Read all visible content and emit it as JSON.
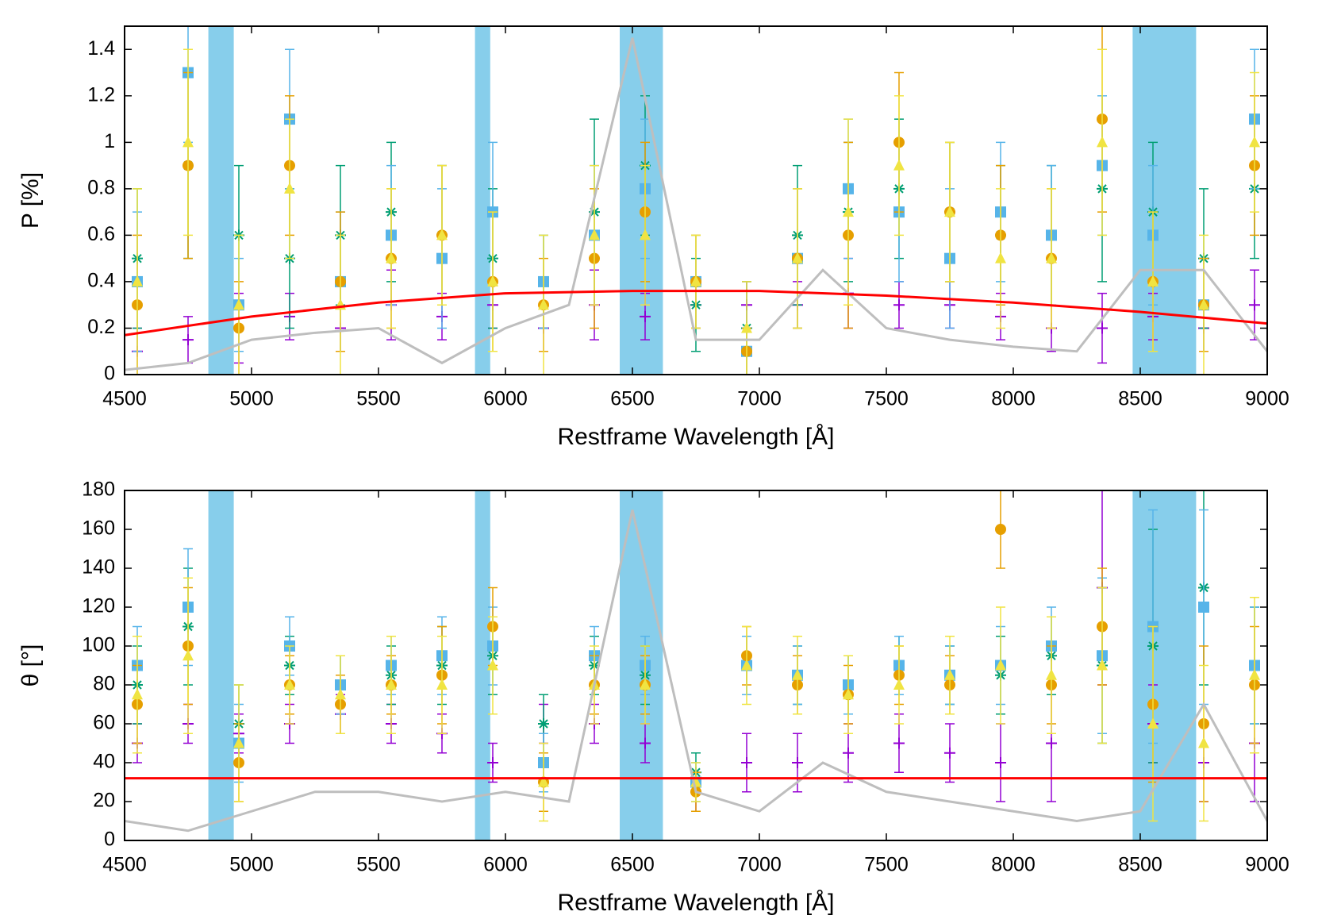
{
  "chart_data": [
    {
      "type": "scatter",
      "xlabel": "Restframe Wavelength [Å]",
      "ylabel": "P [%]",
      "xlim": [
        4500,
        9000
      ],
      "xticks": [
        4500,
        5000,
        5500,
        6000,
        6500,
        7000,
        7500,
        8000,
        8500,
        9000
      ],
      "ylim": [
        0,
        1.5
      ],
      "yticks": [
        0,
        0.2,
        0.4,
        0.6,
        0.8,
        1,
        1.2,
        1.4
      ],
      "bands": {
        "color": "#87ceeb",
        "ranges": [
          [
            4830,
            4930
          ],
          [
            5880,
            5940
          ],
          [
            6450,
            6620
          ],
          [
            8470,
            8720
          ]
        ]
      },
      "x": [
        4550,
        4750,
        4950,
        5150,
        5350,
        5550,
        5750,
        5950,
        6150,
        6350,
        6550,
        6750,
        6950,
        7150,
        7350,
        7550,
        7750,
        7950,
        8150,
        8350,
        8550,
        8750,
        8950
      ],
      "series": [
        {
          "color": "#9400d3",
          "marker": "plus",
          "values": [
            0.1,
            0.15,
            0.2,
            0.25,
            0.2,
            0.3,
            0.25,
            0.3,
            0.2,
            0.3,
            0.25,
            0.3,
            0.3,
            0.3,
            0.35,
            0.3,
            0.3,
            0.25,
            0.2,
            0.2,
            0.25,
            0.2,
            0.3
          ],
          "errors": [
            0.1,
            0.1,
            0.15,
            0.1,
            0.1,
            0.15,
            0.1,
            0.1,
            0.1,
            0.15,
            0.1,
            0.1,
            0.1,
            0.1,
            0.15,
            0.1,
            0.1,
            0.1,
            0.1,
            0.15,
            0.1,
            0.1,
            0.15
          ]
        },
        {
          "color": "#009e73",
          "marker": "star",
          "values": [
            0.5,
            0.9,
            0.6,
            0.5,
            0.6,
            0.7,
            0.6,
            0.5,
            0.4,
            0.7,
            0.9,
            0.3,
            0.2,
            0.6,
            0.7,
            0.8,
            0.7,
            0.6,
            0.6,
            0.8,
            0.7,
            0.5,
            0.8
          ],
          "errors": [
            0.3,
            0.4,
            0.3,
            0.3,
            0.3,
            0.3,
            0.3,
            0.3,
            0.2,
            0.4,
            0.3,
            0.2,
            0.2,
            0.3,
            0.3,
            0.3,
            0.3,
            0.3,
            0.3,
            0.4,
            0.3,
            0.3,
            0.3
          ]
        },
        {
          "color": "#56b4e9",
          "marker": "square",
          "values": [
            0.4,
            1.3,
            0.3,
            1.1,
            0.4,
            0.6,
            0.5,
            0.7,
            0.4,
            0.6,
            0.8,
            0.4,
            0.1,
            0.5,
            0.8,
            0.7,
            0.5,
            0.7,
            0.6,
            0.9,
            0.6,
            0.3,
            1.1
          ],
          "errors": [
            0.3,
            0.3,
            0.2,
            0.3,
            0.3,
            0.3,
            0.3,
            0.3,
            0.2,
            0.3,
            0.3,
            0.2,
            0.1,
            0.3,
            0.3,
            0.3,
            0.3,
            0.3,
            0.3,
            0.3,
            0.3,
            0.2,
            0.3
          ]
        },
        {
          "color": "#e69f00",
          "marker": "circle",
          "values": [
            0.3,
            0.9,
            0.2,
            0.9,
            0.4,
            0.5,
            0.6,
            0.4,
            0.3,
            0.5,
            0.7,
            0.4,
            0.1,
            0.5,
            0.6,
            1.0,
            0.7,
            0.6,
            0.5,
            1.1,
            0.4,
            0.3,
            0.9
          ],
          "errors": [
            0.3,
            0.4,
            0.2,
            0.3,
            0.3,
            0.3,
            0.3,
            0.3,
            0.2,
            0.3,
            0.3,
            0.2,
            0.1,
            0.3,
            0.4,
            0.3,
            0.3,
            0.3,
            0.3,
            0.4,
            0.3,
            0.2,
            0.3
          ]
        },
        {
          "color": "#f0e442",
          "marker": "triangle",
          "values": [
            0.4,
            1.0,
            0.3,
            0.8,
            0.3,
            0.5,
            0.6,
            0.4,
            0.3,
            0.6,
            0.6,
            0.4,
            0.2,
            0.5,
            0.7,
            0.9,
            0.7,
            0.5,
            0.5,
            1.0,
            0.4,
            0.3,
            1.0
          ],
          "errors": [
            0.4,
            0.4,
            0.3,
            0.3,
            0.3,
            0.3,
            0.3,
            0.3,
            0.3,
            0.3,
            0.3,
            0.2,
            0.2,
            0.3,
            0.4,
            0.3,
            0.3,
            0.3,
            0.3,
            0.4,
            0.3,
            0.3,
            0.3
          ]
        }
      ],
      "lines": [
        {
          "color": "#bebebe",
          "x": [
            4500,
            4750,
            5000,
            5250,
            5500,
            5750,
            6000,
            6250,
            6500,
            6750,
            7000,
            7250,
            7500,
            7750,
            8000,
            8250,
            8500,
            8750,
            9000
          ],
          "values": [
            0.02,
            0.05,
            0.15,
            0.18,
            0.2,
            0.05,
            0.2,
            0.3,
            1.45,
            0.15,
            0.15,
            0.45,
            0.2,
            0.15,
            0.12,
            0.1,
            0.45,
            0.45,
            0.1
          ]
        },
        {
          "color": "#ff0000",
          "x": [
            4500,
            5000,
            5500,
            6000,
            6500,
            7000,
            7500,
            8000,
            8500,
            9000
          ],
          "values": [
            0.17,
            0.25,
            0.31,
            0.35,
            0.36,
            0.36,
            0.34,
            0.31,
            0.27,
            0.22
          ]
        }
      ]
    },
    {
      "type": "scatter",
      "xlabel": "Restframe Wavelength [Å]",
      "ylabel": "θ [°]",
      "xlim": [
        4500,
        9000
      ],
      "xticks": [
        4500,
        5000,
        5500,
        6000,
        6500,
        7000,
        7500,
        8000,
        8500,
        9000
      ],
      "ylim": [
        0,
        180
      ],
      "yticks": [
        0,
        20,
        40,
        60,
        80,
        100,
        120,
        140,
        160,
        180
      ],
      "bands": {
        "color": "#87ceeb",
        "ranges": [
          [
            4830,
            4930
          ],
          [
            5880,
            5940
          ],
          [
            6450,
            6620
          ],
          [
            8470,
            8720
          ]
        ]
      },
      "x": [
        4550,
        4750,
        4950,
        5150,
        5350,
        5550,
        5750,
        5950,
        6150,
        6350,
        6550,
        6750,
        6950,
        7150,
        7350,
        7550,
        7750,
        7950,
        8150,
        8350,
        8550,
        8750,
        8950
      ],
      "series": [
        {
          "color": "#9400d3",
          "marker": "plus",
          "values": [
            50,
            60,
            55,
            60,
            65,
            60,
            55,
            40,
            60,
            60,
            50,
            25,
            40,
            40,
            45,
            50,
            45,
            40,
            50,
            130,
            60,
            40,
            50
          ],
          "errors": [
            10,
            10,
            10,
            10,
            10,
            10,
            10,
            10,
            10,
            10,
            10,
            10,
            15,
            15,
            15,
            15,
            15,
            20,
            30,
            50,
            20,
            20,
            30
          ]
        },
        {
          "color": "#009e73",
          "marker": "star",
          "values": [
            80,
            110,
            60,
            90,
            80,
            85,
            90,
            95,
            60,
            90,
            85,
            35,
            90,
            85,
            80,
            90,
            85,
            85,
            95,
            90,
            100,
            130,
            90
          ],
          "errors": [
            20,
            30,
            20,
            15,
            15,
            15,
            20,
            20,
            15,
            15,
            15,
            10,
            15,
            15,
            15,
            15,
            15,
            20,
            20,
            40,
            60,
            50,
            30
          ]
        },
        {
          "color": "#56b4e9",
          "marker": "square",
          "values": [
            90,
            120,
            50,
            100,
            80,
            90,
            95,
            100,
            40,
            95,
            90,
            30,
            90,
            85,
            80,
            90,
            85,
            90,
            100,
            95,
            110,
            120,
            90
          ],
          "errors": [
            20,
            30,
            20,
            15,
            15,
            15,
            20,
            20,
            15,
            15,
            15,
            10,
            15,
            15,
            15,
            15,
            15,
            20,
            20,
            40,
            60,
            50,
            30
          ]
        },
        {
          "color": "#e69f00",
          "marker": "circle",
          "values": [
            70,
            100,
            40,
            80,
            70,
            80,
            85,
            110,
            30,
            80,
            80,
            25,
            95,
            80,
            75,
            85,
            80,
            160,
            80,
            110,
            70,
            60,
            80
          ],
          "errors": [
            20,
            30,
            20,
            15,
            15,
            15,
            25,
            20,
            15,
            15,
            15,
            10,
            15,
            15,
            15,
            15,
            15,
            20,
            20,
            30,
            40,
            40,
            30
          ]
        },
        {
          "color": "#f0e442",
          "marker": "triangle",
          "values": [
            75,
            95,
            50,
            80,
            75,
            80,
            80,
            90,
            30,
            80,
            80,
            30,
            90,
            85,
            75,
            80,
            85,
            90,
            85,
            90,
            60,
            50,
            85
          ],
          "errors": [
            30,
            40,
            30,
            20,
            20,
            25,
            25,
            25,
            20,
            20,
            20,
            10,
            20,
            20,
            20,
            20,
            20,
            30,
            30,
            40,
            50,
            40,
            40
          ]
        }
      ],
      "lines": [
        {
          "color": "#bebebe",
          "x": [
            4500,
            4750,
            5000,
            5250,
            5500,
            5750,
            6000,
            6250,
            6500,
            6750,
            7000,
            7250,
            7500,
            7750,
            8000,
            8250,
            8500,
            8750,
            9000
          ],
          "values": [
            10,
            5,
            15,
            25,
            25,
            20,
            25,
            20,
            170,
            25,
            15,
            40,
            25,
            20,
            15,
            10,
            15,
            70,
            10
          ]
        },
        {
          "color": "#ff0000",
          "x": [
            4500,
            9000
          ],
          "values": [
            32,
            32
          ]
        }
      ]
    }
  ]
}
